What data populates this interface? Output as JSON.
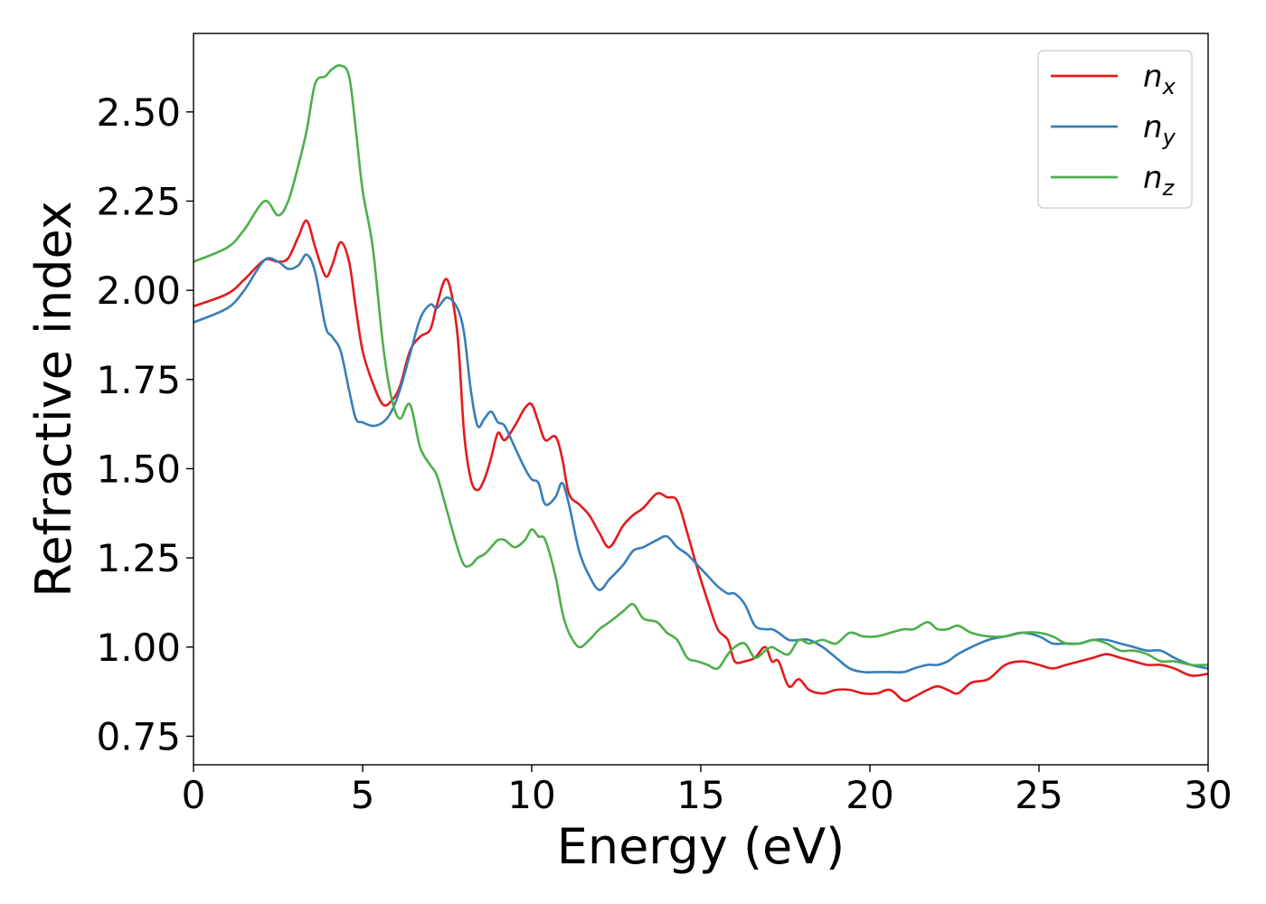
{
  "chart_data": {
    "type": "line",
    "title": "",
    "xlabel": "Energy (eV)",
    "ylabel": "Refractive index",
    "xlim": [
      0,
      30
    ],
    "ylim": [
      0.67,
      2.72
    ],
    "xticks": [
      0,
      5,
      10,
      15,
      20,
      25,
      30
    ],
    "xtick_labels": [
      "0",
      "5",
      "10",
      "15",
      "20",
      "25",
      "30"
    ],
    "yticks": [
      0.75,
      1.0,
      1.25,
      1.5,
      1.75,
      2.0,
      2.25,
      2.5
    ],
    "ytick_labels": [
      "0.75",
      "1.00",
      "1.25",
      "1.50",
      "1.75",
      "2.00",
      "2.25",
      "2.50"
    ],
    "grid": false,
    "legend_position": "top-right",
    "series": [
      {
        "name": "n_x",
        "label_base": "n",
        "label_sub": "x",
        "color": "#e41a1c",
        "x": [
          0,
          1,
          1.5,
          2.1,
          2.5,
          2.8,
          3.1,
          3.35,
          3.6,
          3.9,
          4.1,
          4.35,
          4.6,
          4.8,
          5.0,
          5.3,
          5.6,
          5.85,
          6.1,
          6.4,
          6.7,
          7.0,
          7.2,
          7.5,
          7.8,
          8.0,
          8.2,
          8.4,
          8.6,
          8.8,
          9.0,
          9.2,
          9.5,
          9.8,
          10.0,
          10.2,
          10.4,
          10.7,
          10.9,
          11.1,
          11.4,
          11.7,
          12.0,
          12.3,
          12.7,
          13.0,
          13.3,
          13.7,
          14.0,
          14.3,
          14.6,
          14.9,
          15.2,
          15.5,
          15.8,
          16.0,
          16.3,
          16.6,
          16.9,
          17.1,
          17.3,
          17.6,
          17.9,
          18.2,
          18.6,
          19.0,
          19.4,
          19.8,
          20.2,
          20.6,
          21.0,
          21.3,
          21.7,
          22.0,
          22.3,
          22.6,
          23.0,
          23.5,
          24.0,
          24.5,
          25.0,
          25.4,
          25.8,
          26.2,
          26.6,
          27.0,
          27.4,
          27.8,
          28.2,
          28.6,
          29.0,
          29.5,
          30.0
        ],
        "y": [
          1.955,
          1.99,
          2.03,
          2.085,
          2.08,
          2.09,
          2.15,
          2.195,
          2.12,
          2.04,
          2.07,
          2.135,
          2.08,
          1.95,
          1.83,
          1.74,
          1.68,
          1.69,
          1.73,
          1.83,
          1.87,
          1.89,
          1.96,
          2.03,
          1.88,
          1.6,
          1.47,
          1.44,
          1.47,
          1.53,
          1.6,
          1.58,
          1.62,
          1.67,
          1.68,
          1.63,
          1.58,
          1.59,
          1.53,
          1.43,
          1.4,
          1.37,
          1.32,
          1.28,
          1.34,
          1.37,
          1.39,
          1.43,
          1.42,
          1.41,
          1.32,
          1.22,
          1.13,
          1.05,
          1.02,
          0.96,
          0.96,
          0.97,
          1.0,
          0.96,
          0.96,
          0.89,
          0.91,
          0.88,
          0.87,
          0.88,
          0.88,
          0.87,
          0.87,
          0.88,
          0.85,
          0.86,
          0.88,
          0.89,
          0.88,
          0.87,
          0.9,
          0.91,
          0.95,
          0.96,
          0.95,
          0.94,
          0.95,
          0.96,
          0.97,
          0.98,
          0.97,
          0.96,
          0.95,
          0.95,
          0.94,
          0.92,
          0.925
        ]
      },
      {
        "name": "n_y",
        "label_base": "n",
        "label_sub": "y",
        "color": "#377eb8",
        "x": [
          0,
          1,
          1.5,
          2.1,
          2.5,
          2.8,
          3.1,
          3.35,
          3.6,
          3.9,
          4.1,
          4.35,
          4.6,
          4.8,
          5.0,
          5.3,
          5.6,
          5.85,
          6.1,
          6.4,
          6.7,
          7.0,
          7.2,
          7.5,
          7.8,
          8.0,
          8.2,
          8.4,
          8.6,
          8.8,
          9.0,
          9.2,
          9.5,
          9.8,
          10.0,
          10.2,
          10.4,
          10.7,
          10.9,
          11.1,
          11.4,
          11.7,
          12.0,
          12.3,
          12.7,
          13.0,
          13.3,
          13.7,
          14.0,
          14.3,
          14.6,
          14.9,
          15.2,
          15.5,
          15.8,
          16.0,
          16.3,
          16.6,
          16.9,
          17.1,
          17.3,
          17.6,
          17.9,
          18.2,
          18.6,
          19.0,
          19.4,
          19.8,
          20.2,
          20.6,
          21.0,
          21.3,
          21.7,
          22.0,
          22.3,
          22.6,
          23.0,
          23.5,
          24.0,
          24.5,
          25.0,
          25.4,
          25.8,
          26.2,
          26.6,
          27.0,
          27.4,
          27.8,
          28.2,
          28.6,
          29.0,
          29.5,
          30.0
        ],
        "y": [
          1.91,
          1.95,
          2.0,
          2.085,
          2.08,
          2.06,
          2.07,
          2.1,
          2.05,
          1.9,
          1.87,
          1.83,
          1.72,
          1.64,
          1.63,
          1.62,
          1.63,
          1.66,
          1.72,
          1.82,
          1.92,
          1.96,
          1.95,
          1.98,
          1.95,
          1.88,
          1.72,
          1.62,
          1.64,
          1.66,
          1.63,
          1.62,
          1.56,
          1.5,
          1.47,
          1.46,
          1.4,
          1.42,
          1.46,
          1.4,
          1.27,
          1.2,
          1.16,
          1.19,
          1.23,
          1.27,
          1.28,
          1.3,
          1.31,
          1.28,
          1.26,
          1.23,
          1.2,
          1.17,
          1.15,
          1.15,
          1.12,
          1.06,
          1.05,
          1.05,
          1.04,
          1.02,
          1.02,
          1.02,
          1.0,
          0.97,
          0.94,
          0.93,
          0.93,
          0.93,
          0.93,
          0.94,
          0.95,
          0.95,
          0.96,
          0.98,
          1.0,
          1.02,
          1.03,
          1.04,
          1.03,
          1.01,
          1.01,
          1.01,
          1.02,
          1.02,
          1.01,
          1.0,
          0.99,
          0.99,
          0.97,
          0.95,
          0.94
        ]
      },
      {
        "name": "n_z",
        "label_base": "n",
        "label_sub": "z",
        "color": "#4daf4a",
        "x": [
          0,
          1,
          1.5,
          2.1,
          2.5,
          2.8,
          3.1,
          3.35,
          3.6,
          3.9,
          4.1,
          4.35,
          4.6,
          4.8,
          5.0,
          5.3,
          5.6,
          5.85,
          6.1,
          6.4,
          6.7,
          7.0,
          7.2,
          7.5,
          7.8,
          8.0,
          8.2,
          8.4,
          8.6,
          8.8,
          9.0,
          9.2,
          9.5,
          9.8,
          10.0,
          10.2,
          10.4,
          10.7,
          10.9,
          11.1,
          11.4,
          11.7,
          12.0,
          12.3,
          12.7,
          13.0,
          13.3,
          13.7,
          14.0,
          14.3,
          14.6,
          14.9,
          15.2,
          15.5,
          15.8,
          16.0,
          16.3,
          16.6,
          16.9,
          17.1,
          17.3,
          17.6,
          17.9,
          18.2,
          18.6,
          19.0,
          19.4,
          19.8,
          20.2,
          20.6,
          21.0,
          21.3,
          21.7,
          22.0,
          22.3,
          22.6,
          23.0,
          23.5,
          24.0,
          24.5,
          25.0,
          25.4,
          25.8,
          26.2,
          26.6,
          27.0,
          27.4,
          27.8,
          28.2,
          28.6,
          29.0,
          29.5,
          30.0
        ],
        "y": [
          2.08,
          2.12,
          2.17,
          2.25,
          2.21,
          2.25,
          2.35,
          2.45,
          2.58,
          2.6,
          2.62,
          2.63,
          2.6,
          2.45,
          2.28,
          2.12,
          1.85,
          1.7,
          1.64,
          1.68,
          1.56,
          1.51,
          1.48,
          1.38,
          1.28,
          1.23,
          1.23,
          1.25,
          1.26,
          1.28,
          1.3,
          1.3,
          1.28,
          1.3,
          1.33,
          1.31,
          1.3,
          1.2,
          1.1,
          1.04,
          1.0,
          1.02,
          1.05,
          1.07,
          1.1,
          1.12,
          1.08,
          1.07,
          1.04,
          1.02,
          0.97,
          0.96,
          0.95,
          0.94,
          0.98,
          1.0,
          1.01,
          0.97,
          0.99,
          1.0,
          0.99,
          0.98,
          1.02,
          1.01,
          1.02,
          1.01,
          1.04,
          1.03,
          1.03,
          1.04,
          1.05,
          1.05,
          1.07,
          1.05,
          1.05,
          1.06,
          1.04,
          1.03,
          1.03,
          1.04,
          1.04,
          1.03,
          1.01,
          1.01,
          1.02,
          1.01,
          0.99,
          0.99,
          0.98,
          0.96,
          0.96,
          0.95,
          0.95
        ]
      }
    ]
  }
}
